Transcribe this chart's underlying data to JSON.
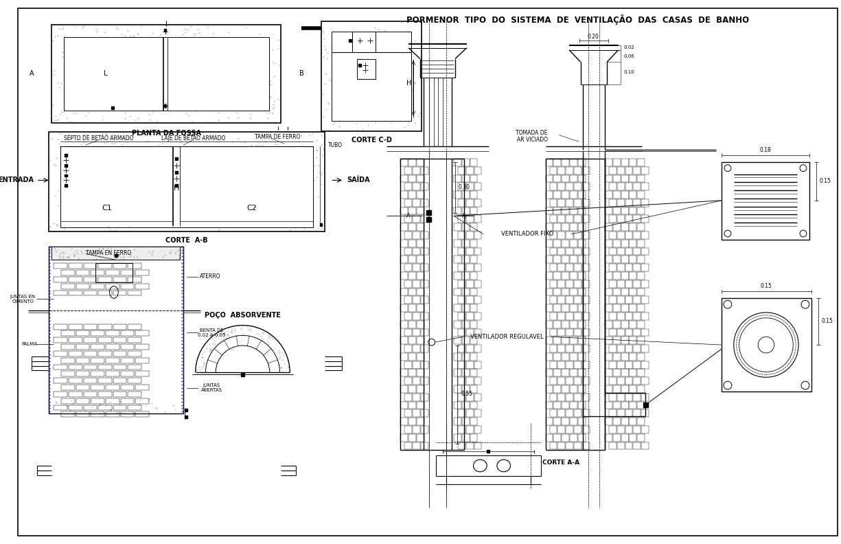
{
  "title": "PORMENOR  TIPO  DO  SISTEMA  DE  VENTILAÇÃO  DAS  CASAS  DE  BANHO",
  "bg_color": "#ffffff",
  "line_color": "#000000",
  "labels": {
    "planta_da_fossa": "PLANTA DA FOSSA",
    "corte_ab": "CORTE  A-B",
    "corte_cd": "CORTE C-D",
    "poco_absorvente": "POÇO  ABSORVENTE",
    "corte_aa": "CORTE A-A",
    "entrada": "ENTRADA",
    "saida": "SAÍDA",
    "c1": "C1",
    "c2": "C2",
    "h": "H",
    "l": "L",
    "tubo": "TUBO",
    "septo": "SEPTO DE BETÃO ARMADO",
    "laje": "LAJE DE BETÃO ARMADO",
    "tampa_ferro": "TAMPA DE FERRO",
    "tampa_en_ferro": "TAMPA EN FERRO",
    "juntas_en_cimento": "JUNTAS EN\nCIMENTO",
    "palma": "PALMA",
    "benta": "BENTA DE\n0.02 A 0.05",
    "juntas_abertas": "JUNTAS\nABERTAS",
    "aterro": "ATERRO",
    "ventilador_fixo": "VENTILADOR FIXO",
    "ventilador_regulavel": "VENTILADOR REGULAVEL",
    "tomada_ar": "TOMADA DE\nAR VICIADO",
    "dim_030": "0.30",
    "dim_055": "0.55",
    "dim_015": "0.15",
    "dim_018": "0.18",
    "dim_020": "0.20",
    "dim_002": "0.02",
    "dim_006": "0.06",
    "dim_010": "0.10"
  }
}
